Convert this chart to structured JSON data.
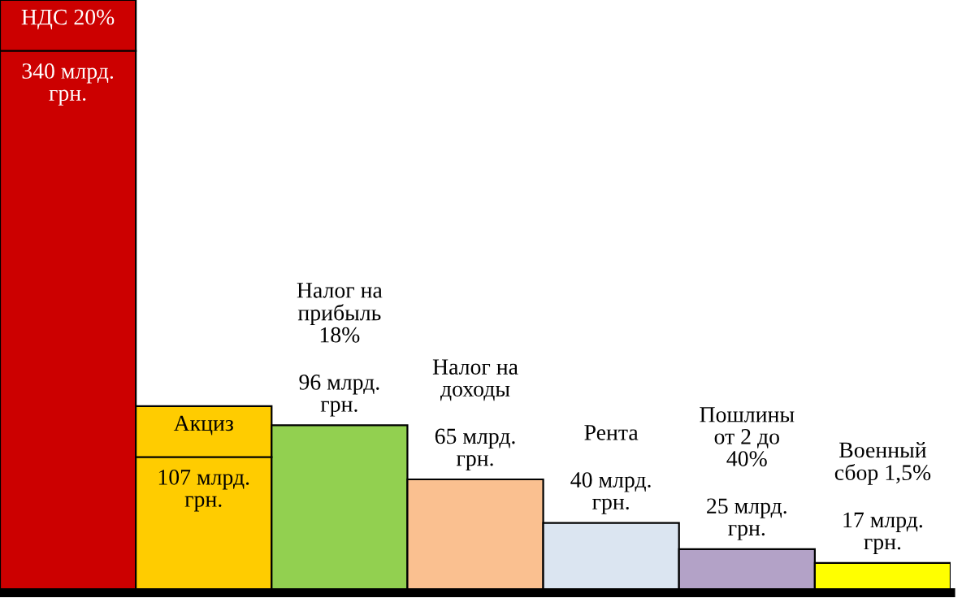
{
  "chart_data": {
    "type": "bar",
    "categories": [
      "НДС 20%",
      "Акциз",
      "Налог на прибыль 18%",
      "Налог на доходы",
      "Рента",
      "Пошлины от 2 до 40%",
      "Военный сбор 1,5%"
    ],
    "values": [
      340,
      107,
      96,
      65,
      40,
      25,
      17
    ],
    "colors": [
      "#cc0000",
      "#ffcc00",
      "#92d050",
      "#fac090",
      "#dbe5f1",
      "#b3a2c7",
      "#ffff00"
    ],
    "value_labels": [
      "340 млрд. грн.",
      "107 млрд. грн.",
      "96 млрд. грн.",
      "65 млрд. грн.",
      "40 млрд. грн.",
      "25 млрд. грн.",
      "17 млрд. грн."
    ]
  }
}
